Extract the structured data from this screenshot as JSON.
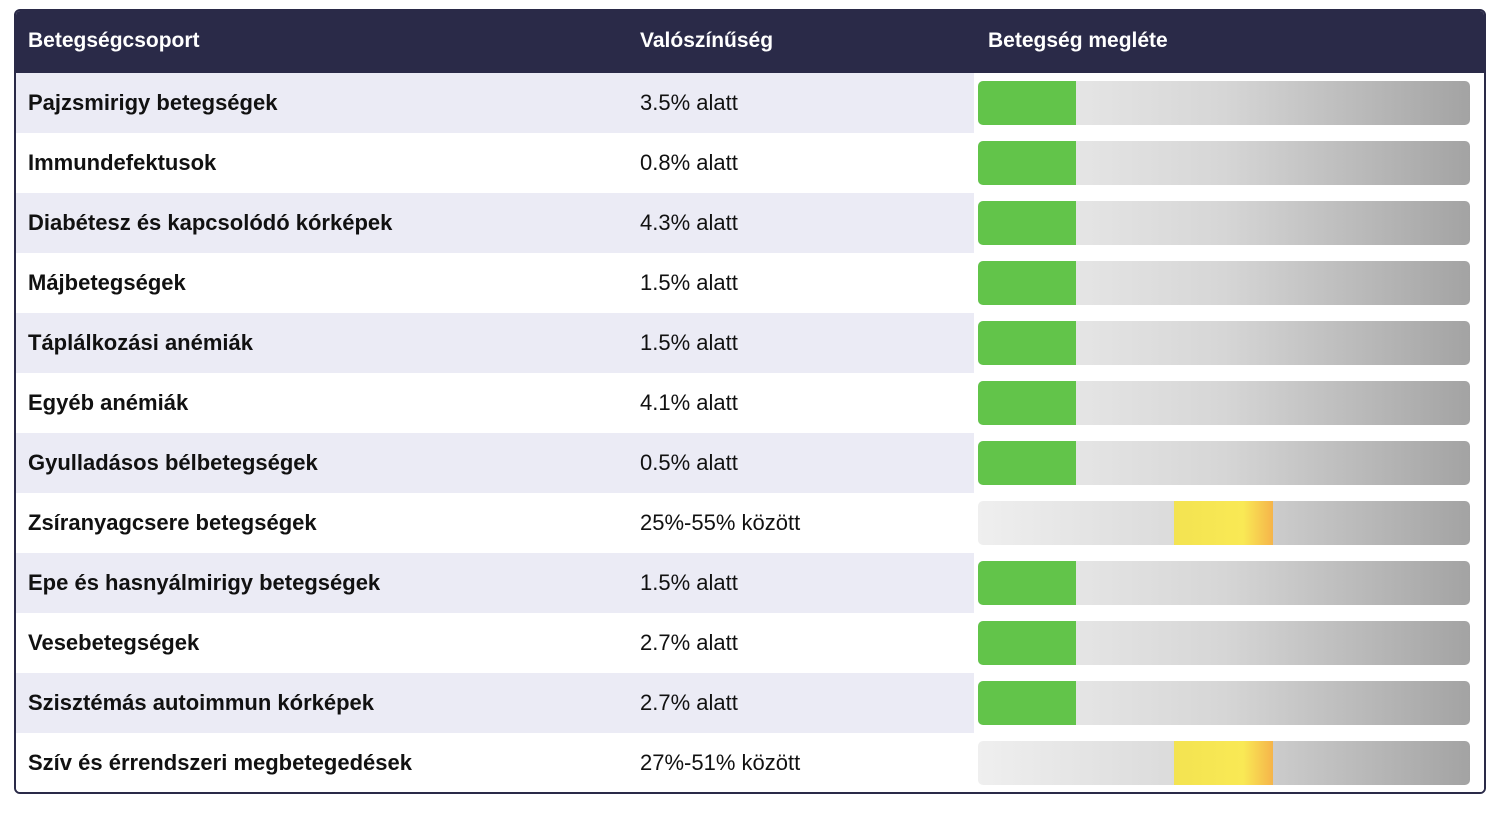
{
  "header": {
    "col_group": "Betegségcsoport",
    "col_probability": "Valószínűség",
    "col_presence": "Betegség megléte"
  },
  "colors": {
    "header_bg": "#2a2a48",
    "green": "#62c44a",
    "yellow": "#f9e955",
    "row_alt": "#ebebf5"
  },
  "rows": [
    {
      "name": "Pajzsmirigy betegségek",
      "probability": "3.5% alatt",
      "level": "low"
    },
    {
      "name": "Immundefektusok",
      "probability": "0.8% alatt",
      "level": "low"
    },
    {
      "name": "Diabétesz és kapcsolódó kórképek",
      "probability": "4.3% alatt",
      "level": "low"
    },
    {
      "name": "Májbetegségek",
      "probability": "1.5% alatt",
      "level": "low"
    },
    {
      "name": "Táplálkozási anémiák",
      "probability": "1.5% alatt",
      "level": "low"
    },
    {
      "name": "Egyéb anémiák",
      "probability": "4.1% alatt",
      "level": "low"
    },
    {
      "name": "Gyulladásos bélbetegségek",
      "probability": "0.5% alatt",
      "level": "low"
    },
    {
      "name": "Zsíranyagcsere betegségek",
      "probability": "25%-55% között",
      "level": "medium"
    },
    {
      "name": "Epe és hasnyálmirigy betegségek",
      "probability": "1.5% alatt",
      "level": "low"
    },
    {
      "name": "Vesebetegségek",
      "probability": "2.7% alatt",
      "level": "low"
    },
    {
      "name": "Szisztémás autoimmun kórképek",
      "probability": "2.7% alatt",
      "level": "low"
    },
    {
      "name": "Szív és érrendszeri megbetegedések",
      "probability": "27%-51% között",
      "level": "medium"
    }
  ]
}
